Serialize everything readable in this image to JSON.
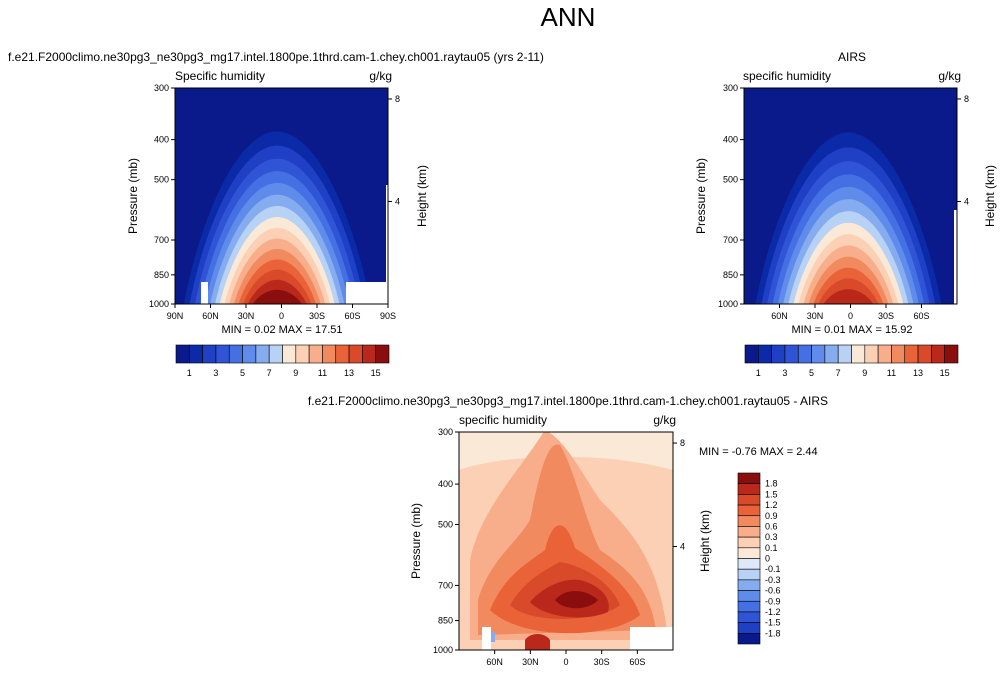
{
  "figure_title": "ANN",
  "panels": [
    {
      "id": "model",
      "title": "f.e21.F2000climo.ne30pg3_ne30pg3_mg17.intel.1800pe.1thrd.cam-1.chey.ch001.raytau05 (yrs 2-11)",
      "left_label": "Specific humidity",
      "right_label": "g/kg",
      "stats": "MIN =  0.02  MAX = 17.51"
    },
    {
      "id": "obs",
      "title": "AIRS",
      "left_label": "specific humidity",
      "right_label": "g/kg",
      "stats": "MIN =  0.01  MAX = 15.92"
    },
    {
      "id": "diff",
      "title": "f.e21.F2000climo.ne30pg3_ne30pg3_mg17.intel.1800pe.1thrd.cam-1.chey.ch001.raytau05 - AIRS",
      "left_label": "specific humidity",
      "right_label": "g/kg",
      "stats": "MIN = -0.76  MAX =  2.44"
    }
  ],
  "chart_data": [
    {
      "type": "heatmap",
      "panel": "model",
      "xlabel": "",
      "ylabel": "Pressure (mb)",
      "y2label": "Height (km)",
      "x_ticks": [
        "90N",
        "60N",
        "30N",
        "0",
        "30S",
        "60S",
        "90S"
      ],
      "x_tick_values": [
        90,
        60,
        30,
        0,
        -30,
        -60,
        -90
      ],
      "xlim": [
        90,
        -90
      ],
      "y_ticks": [
        300,
        400,
        500,
        700,
        850,
        1000
      ],
      "ylim": [
        300,
        1000
      ],
      "y_scale": "log",
      "y2_ticks": [
        "8",
        "4"
      ],
      "y2_tick_values": [
        8,
        4
      ],
      "colorbar_labels": [
        "1",
        "3",
        "5",
        "7",
        "9",
        "11",
        "13",
        "15"
      ],
      "colorbar_levels": [
        1,
        2,
        3,
        4,
        5,
        6,
        7,
        8,
        9,
        10,
        11,
        12,
        13,
        14,
        15
      ],
      "colorbar_orientation": "horizontal",
      "min": 0.02,
      "max": 17.51
    },
    {
      "type": "heatmap",
      "panel": "obs",
      "xlabel": "",
      "ylabel": "Pressure (mb)",
      "y2label": "Height (km)",
      "x_ticks": [
        "60N",
        "30N",
        "0",
        "30S",
        "60S"
      ],
      "x_tick_values": [
        60,
        30,
        0,
        -30,
        -60
      ],
      "xlim": [
        90,
        -90
      ],
      "y_ticks": [
        300,
        400,
        500,
        700,
        850,
        1000
      ],
      "ylim": [
        300,
        1000
      ],
      "y_scale": "log",
      "y2_ticks": [
        "8",
        "4"
      ],
      "y2_tick_values": [
        8,
        4
      ],
      "colorbar_labels": [
        "1",
        "3",
        "5",
        "7",
        "9",
        "11",
        "13",
        "15"
      ],
      "colorbar_levels": [
        1,
        2,
        3,
        4,
        5,
        6,
        7,
        8,
        9,
        10,
        11,
        12,
        13,
        14,
        15
      ],
      "colorbar_orientation": "horizontal",
      "min": 0.01,
      "max": 15.92
    },
    {
      "type": "heatmap",
      "panel": "diff",
      "xlabel": "",
      "ylabel": "Pressure (mb)",
      "y2label": "Height (km)",
      "x_ticks": [
        "60N",
        "30N",
        "0",
        "30S",
        "60S"
      ],
      "x_tick_values": [
        60,
        30,
        0,
        -30,
        -60
      ],
      "xlim": [
        90,
        -90
      ],
      "y_ticks": [
        300,
        400,
        500,
        700,
        850,
        1000
      ],
      "ylim": [
        300,
        1000
      ],
      "y_scale": "log",
      "y2_ticks": [
        "8",
        "4"
      ],
      "y2_tick_values": [
        8,
        4
      ],
      "colorbar_labels": [
        "1.8",
        "1.5",
        "1.2",
        "0.9",
        "0.6",
        "0.3",
        "0.1",
        "0",
        "-0.1",
        "-0.3",
        "-0.6",
        "-0.9",
        "-1.2",
        "-1.5",
        "-1.8"
      ],
      "colorbar_orientation": "vertical",
      "min": -0.76,
      "max": 2.44
    }
  ],
  "colors": {
    "abs_scale": [
      "#0a1a8a",
      "#0a2aa8",
      "#1f3fc4",
      "#2f55d6",
      "#4470e4",
      "#5f8cea",
      "#86acf0",
      "#b8d2f6",
      "#fbe9d8",
      "#fbd0b4",
      "#f8ae8a",
      "#f28a60",
      "#ea6238",
      "#d94a2a",
      "#b9281a",
      "#8a0e0e"
    ],
    "diff_scale": [
      "#8a0e0e",
      "#b9281a",
      "#d94a2a",
      "#ea6238",
      "#f28a60",
      "#f8ae8a",
      "#fbd0b4",
      "#fbe9d8",
      "#dde8f8",
      "#b8d2f6",
      "#86acf0",
      "#5f8cea",
      "#4470e4",
      "#2f55d6",
      "#1f3fc4",
      "#0a1a8a"
    ]
  }
}
